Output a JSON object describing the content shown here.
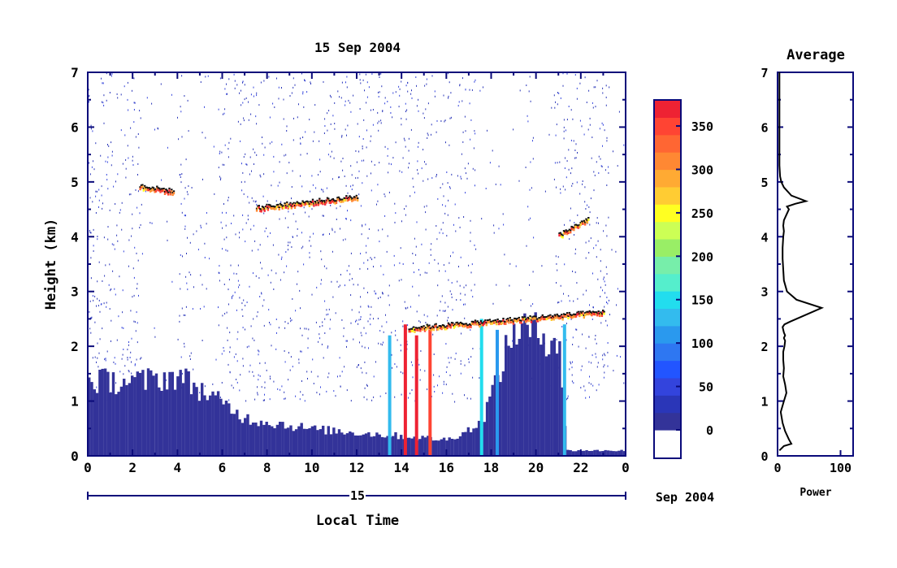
{
  "chart_data": [
    {
      "type": "heatmap",
      "title": "15 Sep 2004",
      "xlabel": "Local Time",
      "ylabel": "Height (km)",
      "xlim": [
        0,
        24
      ],
      "ylim": [
        0,
        7
      ],
      "xticks": [
        "0",
        "2",
        "4",
        "6",
        "8",
        "10",
        "12",
        "14",
        "16",
        "18",
        "20",
        "22",
        "0"
      ],
      "yticks": [
        "0",
        "1",
        "2",
        "3",
        "4",
        "5",
        "6",
        "7"
      ],
      "date_axis": {
        "day": "15",
        "month_year": "Sep 2004"
      },
      "colorbar": {
        "ticks": [
          "0",
          "50",
          "100",
          "150",
          "200",
          "250",
          "300",
          "350"
        ],
        "range": [
          0,
          380
        ],
        "colors": [
          "#333399",
          "#2a36b8",
          "#3344dd",
          "#2255ff",
          "#2e77f2",
          "#2a99ee",
          "#33bbee",
          "#22ddee",
          "#55eecc",
          "#77eeaa",
          "#99ee66",
          "#ccff55",
          "#ffff22",
          "#ffcc33",
          "#ffaa33",
          "#ff8833",
          "#ff6633",
          "#ff4433",
          "#ee2233"
        ]
      },
      "layers": [
        {
          "feature": "low boundary-layer echo",
          "x": [
            2.4,
            4.0,
            7.0,
            10.0,
            13.0,
            16.0,
            17.5,
            19.0,
            21.0,
            21.3,
            24.0
          ],
          "height_top_km": [
            1.4,
            1.5,
            0.7,
            0.5,
            0.4,
            0.3,
            0.6,
            2.4,
            2.2,
            0.1,
            0.1
          ]
        },
        {
          "feature": "layer near 5 km",
          "x": [
            2.3,
            3.8
          ],
          "height_km": [
            4.9,
            4.8
          ]
        },
        {
          "feature": "layer near 4.6 km",
          "x": [
            7.5,
            12.0
          ],
          "height_km": [
            4.5,
            4.7
          ]
        },
        {
          "feature": "layer near 2.4 km",
          "x": [
            14.3,
            23.0
          ],
          "height_km": [
            2.3,
            2.6
          ]
        },
        {
          "feature": "layer near 4.2 km",
          "x": [
            21.0,
            22.3
          ],
          "height_km": [
            4.0,
            4.3
          ]
        }
      ]
    },
    {
      "type": "line",
      "title": "Average",
      "xlabel": "Power",
      "ylabel": "",
      "xlim": [
        0,
        120
      ],
      "ylim": [
        0,
        7
      ],
      "xticks": [
        "0",
        "100"
      ],
      "yticks": [
        "0",
        "1",
        "2",
        "3",
        "4",
        "5",
        "6",
        "7"
      ],
      "series": [
        {
          "x": [
            3,
            10,
            22,
            18,
            12,
            8,
            5,
            10,
            14,
            12,
            9,
            10,
            9,
            9,
            11,
            12,
            10,
            12,
            10,
            9,
            8,
            11,
            20,
            40,
            70,
            30,
            15,
            10,
            9,
            8,
            8,
            9,
            10,
            9,
            10,
            14,
            18,
            15,
            28,
            45,
            22,
            10,
            6,
            4,
            3,
            3,
            3,
            3
          ],
          "y": [
            0.1,
            0.18,
            0.22,
            0.3,
            0.45,
            0.6,
            0.8,
            1.0,
            1.15,
            1.3,
            1.45,
            1.6,
            1.75,
            1.9,
            2.0,
            2.1,
            2.15,
            2.2,
            2.25,
            2.3,
            2.35,
            2.4,
            2.45,
            2.55,
            2.7,
            2.85,
            3.0,
            3.2,
            3.4,
            3.6,
            3.8,
            4.0,
            4.1,
            4.2,
            4.3,
            4.4,
            4.5,
            4.55,
            4.6,
            4.65,
            4.75,
            4.9,
            5.0,
            5.1,
            5.3,
            6.0,
            6.5,
            7.0
          ]
        }
      ]
    }
  ]
}
